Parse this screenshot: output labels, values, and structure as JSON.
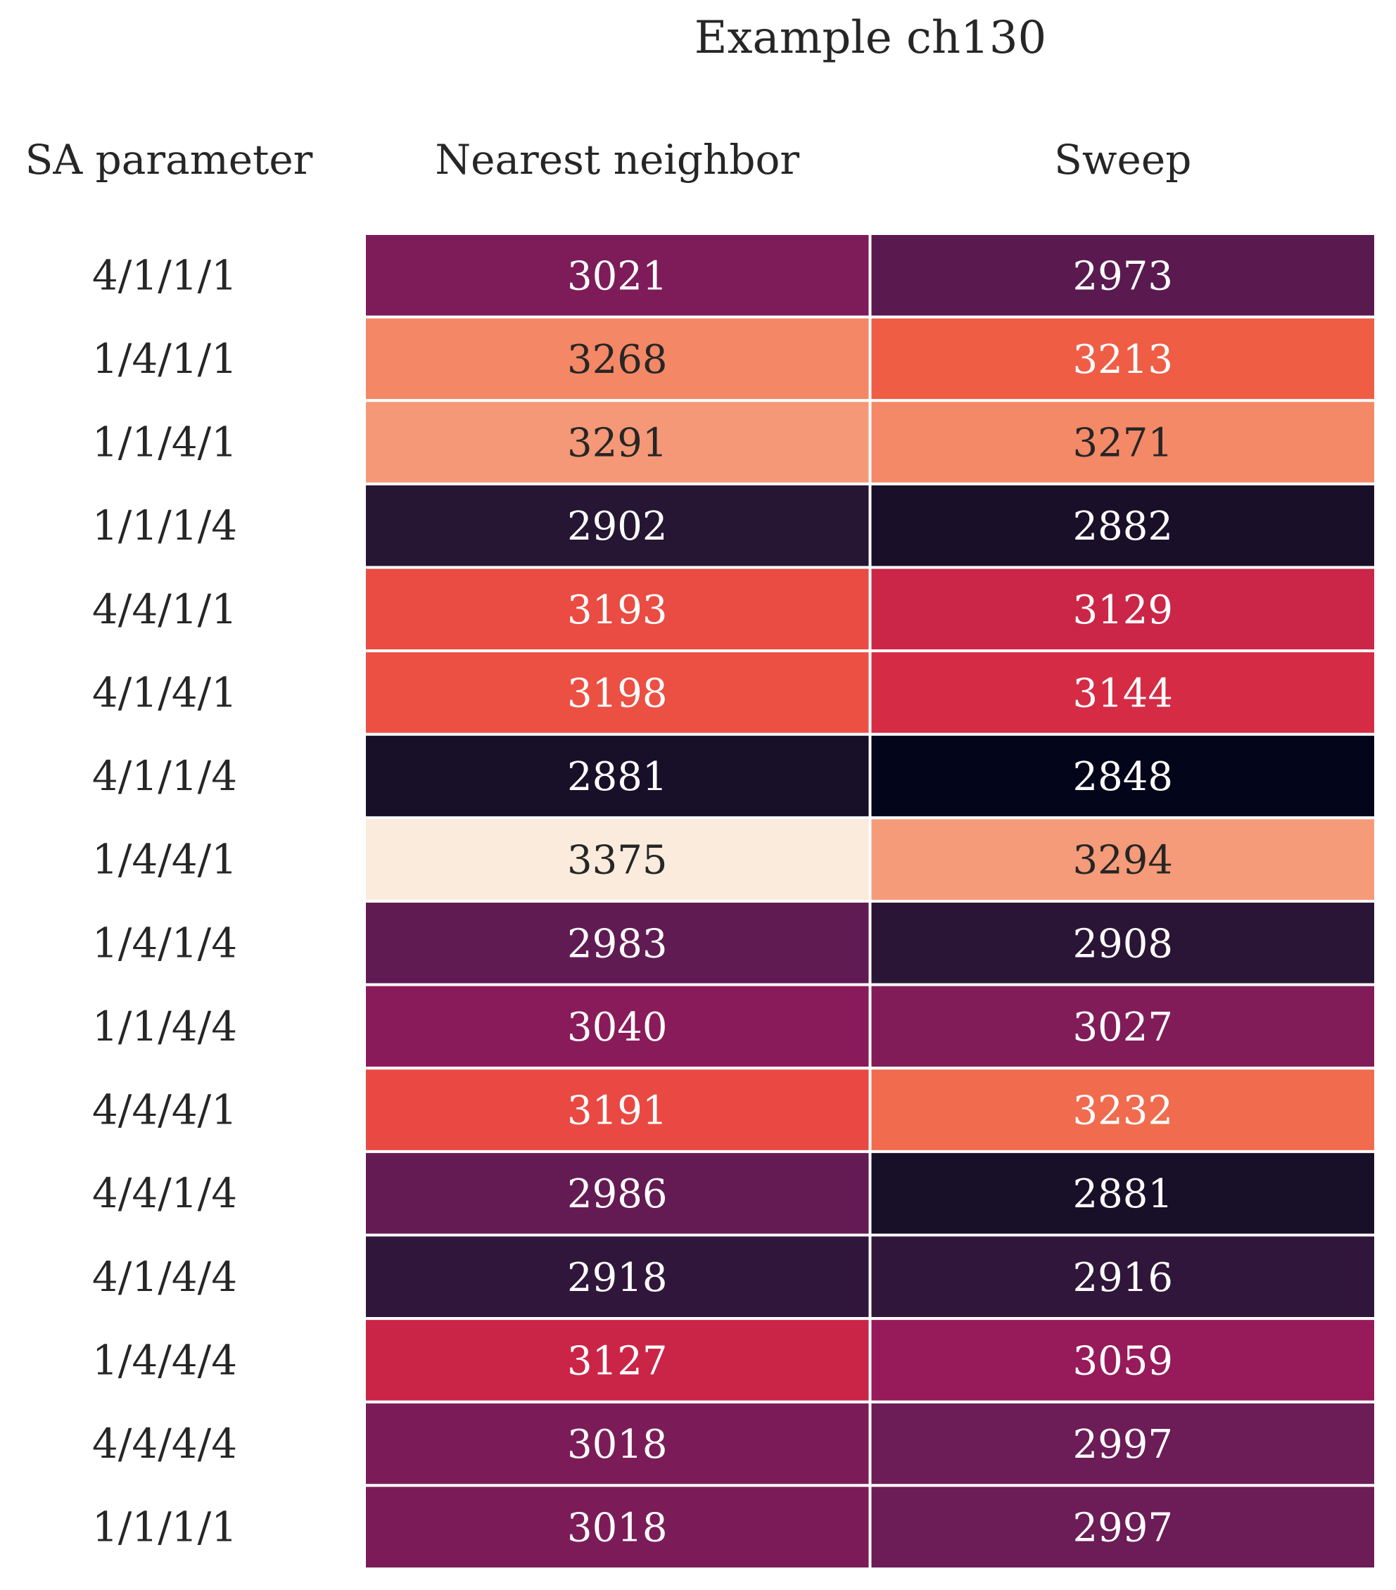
{
  "chart_data": {
    "type": "heatmap",
    "title": "Example ch130",
    "row_header": "SA parameter",
    "columns": [
      "Nearest neighbor",
      "Sweep"
    ],
    "rows": [
      "4/1/1/1",
      "1/4/1/1",
      "1/1/4/1",
      "1/1/1/4",
      "4/4/1/1",
      "4/1/4/1",
      "4/1/1/4",
      "1/4/4/1",
      "1/4/1/4",
      "1/1/4/4",
      "4/4/4/1",
      "4/4/1/4",
      "4/1/4/4",
      "1/4/4/4",
      "4/4/4/4",
      "1/1/1/1"
    ],
    "values": [
      [
        3021,
        2973
      ],
      [
        3268,
        3213
      ],
      [
        3291,
        3271
      ],
      [
        2902,
        2882
      ],
      [
        3193,
        3129
      ],
      [
        3198,
        3144
      ],
      [
        2881,
        2848
      ],
      [
        3375,
        3294
      ],
      [
        2983,
        2908
      ],
      [
        3040,
        3027
      ],
      [
        3191,
        3232
      ],
      [
        2986,
        2881
      ],
      [
        2918,
        2916
      ],
      [
        3127,
        3059
      ],
      [
        3018,
        2997
      ],
      [
        3018,
        2997
      ]
    ],
    "colormap": "rocket",
    "vmin": 2848,
    "vmax": 3375,
    "colorbar": false
  }
}
